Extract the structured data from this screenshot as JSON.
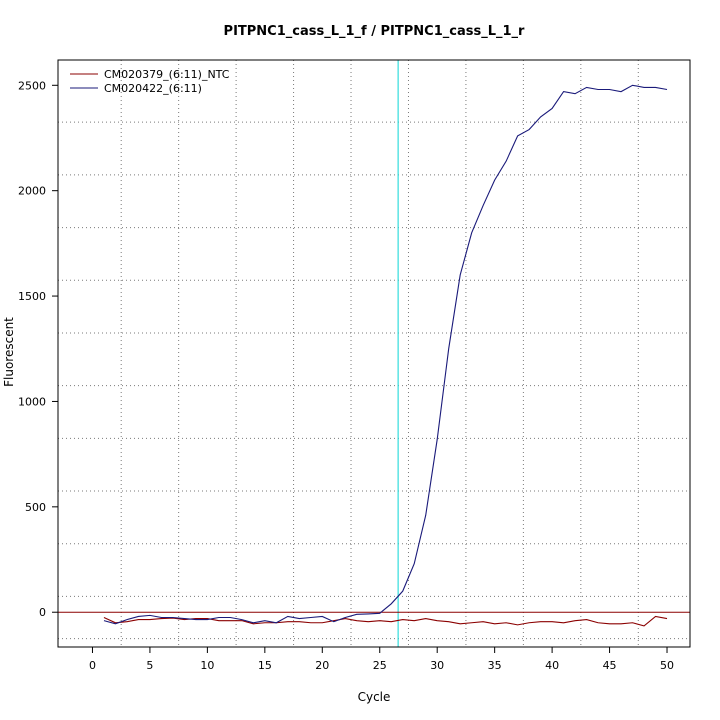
{
  "chart_data": {
    "type": "line",
    "title": "PITPNC1_cass_L_1_f / PITPNC1_cass_L_1_r",
    "xlabel": "Cycle",
    "ylabel": "Fluorescent",
    "xlim": [
      -3,
      52
    ],
    "ylim": [
      -165,
      2620
    ],
    "x_ticks": [
      0,
      5,
      10,
      15,
      20,
      25,
      30,
      35,
      40,
      45,
      50
    ],
    "y_ticks": [
      0,
      500,
      1000,
      1500,
      2000,
      2500
    ],
    "x_grid": [
      2.5,
      7.5,
      12.5,
      17.5,
      22.5,
      27.5,
      32.5,
      37.5,
      42.5,
      47.5
    ],
    "y_grid": [
      -125,
      75,
      325,
      575,
      825,
      1075,
      1325,
      1575,
      1825,
      2075,
      2325
    ],
    "grid": true,
    "legend_position": "top-left",
    "threshold": {
      "x": 26.6,
      "color": "#33dddd"
    },
    "baseline": {
      "y": 0,
      "color": "#8b0000"
    },
    "x": [
      1,
      2,
      3,
      4,
      5,
      6,
      7,
      8,
      9,
      10,
      11,
      12,
      13,
      14,
      15,
      16,
      17,
      18,
      19,
      20,
      21,
      22,
      23,
      24,
      25,
      26,
      27,
      28,
      29,
      30,
      31,
      32,
      33,
      34,
      35,
      36,
      37,
      38,
      39,
      40,
      41,
      42,
      43,
      44,
      45,
      46,
      47,
      48,
      49,
      50
    ],
    "series": [
      {
        "name": "CM020379_(6:11)_NTC",
        "color": "#8b0000",
        "values": [
          -25,
          -50,
          -45,
          -35,
          -35,
          -30,
          -28,
          -35,
          -30,
          -30,
          -40,
          -40,
          -40,
          -55,
          -50,
          -50,
          -45,
          -45,
          -50,
          -50,
          -40,
          -30,
          -40,
          -45,
          -40,
          -45,
          -35,
          -40,
          -30,
          -40,
          -45,
          -55,
          -50,
          -45,
          -55,
          -50,
          -60,
          -50,
          -45,
          -45,
          -50,
          -40,
          -35,
          -50,
          -55,
          -55,
          -50,
          -65,
          -20,
          -30
        ]
      },
      {
        "name": "CM020422_(6:11)",
        "color": "#1a1a7a",
        "values": [
          -40,
          -55,
          -35,
          -20,
          -15,
          -25,
          -25,
          -30,
          -35,
          -35,
          -25,
          -25,
          -35,
          -50,
          -40,
          -50,
          -20,
          -30,
          -25,
          -20,
          -45,
          -25,
          -10,
          -8,
          -5,
          40,
          100,
          230,
          460,
          820,
          1250,
          1600,
          1800,
          1930,
          2050,
          2140,
          2260,
          2290,
          2350,
          2390,
          2470,
          2460,
          2490,
          2480,
          2480,
          2470,
          2500,
          2490,
          2490,
          2480
        ]
      }
    ]
  }
}
